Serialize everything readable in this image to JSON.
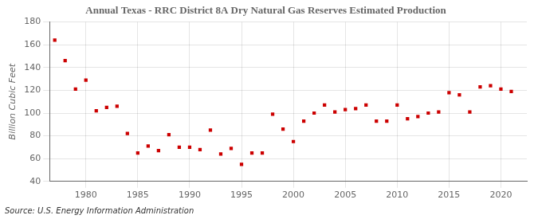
{
  "chart_data": {
    "type": "scatter",
    "title": "Annual Texas - RRC District 8A Dry Natural Gas Reserves Estimated Production",
    "ylabel": "Billion Cubic Feet",
    "annotations": [
      "Source: U.S. Energy Information Administration"
    ],
    "x": [
      1977,
      1978,
      1979,
      1980,
      1981,
      1982,
      1983,
      1984,
      1985,
      1986,
      1987,
      1988,
      1989,
      1990,
      1991,
      1992,
      1993,
      1994,
      1995,
      1996,
      1997,
      1998,
      1999,
      2000,
      2001,
      2002,
      2003,
      2004,
      2005,
      2006,
      2007,
      2008,
      2009,
      2010,
      2011,
      2012,
      2013,
      2014,
      2015,
      2016,
      2017,
      2018,
      2019,
      2020,
      2021
    ],
    "values": [
      164,
      146,
      121,
      129,
      102,
      105,
      106,
      82,
      65,
      71,
      67,
      81,
      70,
      70,
      68,
      85,
      64,
      69,
      55,
      65,
      65,
      99,
      86,
      75,
      93,
      100,
      107,
      101,
      103,
      104,
      107,
      93,
      93,
      107,
      95,
      97,
      100,
      101,
      118,
      116,
      101,
      123,
      124,
      121,
      119
    ],
    "color": "#cc0000",
    "marker": "square",
    "xlim": [
      1976.5,
      2022.5
    ],
    "ylim": [
      40,
      180
    ],
    "xticks": [
      1980,
      1985,
      1990,
      1995,
      2000,
      2005,
      2010,
      2015,
      2020
    ],
    "yticks": [
      40,
      60,
      80,
      100,
      120,
      140,
      160,
      180
    ],
    "grid": true
  }
}
